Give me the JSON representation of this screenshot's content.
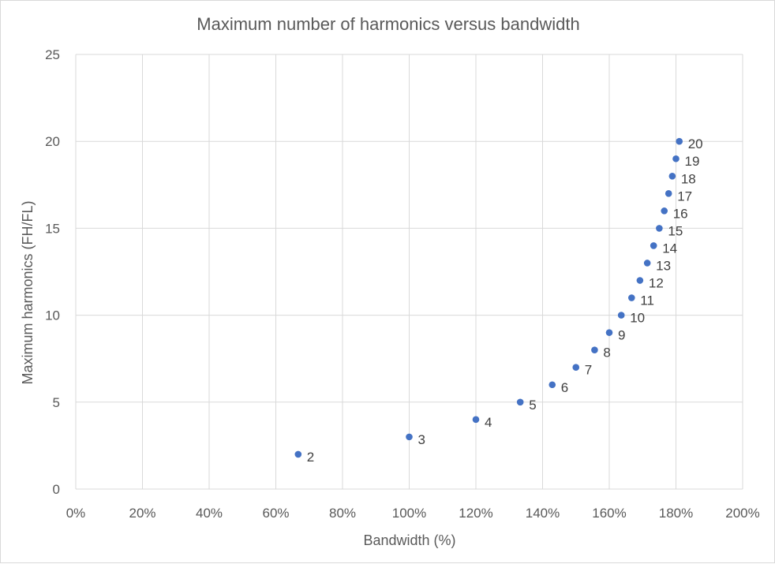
{
  "chart_data": {
    "type": "scatter",
    "title": "Maximum number of harmonics versus bandwidth",
    "xlabel": "Bandwidth (%)",
    "ylabel": "Maximum harmonics (FH/FL)",
    "xlim": [
      0,
      200
    ],
    "ylim": [
      0,
      25
    ],
    "x_ticks": [
      0,
      20,
      40,
      60,
      80,
      100,
      120,
      140,
      160,
      180,
      200
    ],
    "x_tick_labels": [
      "0%",
      "20%",
      "40%",
      "60%",
      "80%",
      "100%",
      "120%",
      "140%",
      "160%",
      "180%",
      "200%"
    ],
    "y_ticks": [
      0,
      5,
      10,
      15,
      20,
      25
    ],
    "y_tick_labels": [
      "0",
      "5",
      "10",
      "15",
      "20",
      "25"
    ],
    "grid": true,
    "legend": "none",
    "series": [
      {
        "name": "Maximum harmonics",
        "color": "#4472c4",
        "points": [
          {
            "x": 66.7,
            "y": 2,
            "label": "2"
          },
          {
            "x": 100.0,
            "y": 3,
            "label": "3"
          },
          {
            "x": 120.0,
            "y": 4,
            "label": "4"
          },
          {
            "x": 133.3,
            "y": 5,
            "label": "5"
          },
          {
            "x": 142.9,
            "y": 6,
            "label": "6"
          },
          {
            "x": 150.0,
            "y": 7,
            "label": "7"
          },
          {
            "x": 155.6,
            "y": 8,
            "label": "8"
          },
          {
            "x": 160.0,
            "y": 9,
            "label": "9"
          },
          {
            "x": 163.6,
            "y": 10,
            "label": "10"
          },
          {
            "x": 166.7,
            "y": 11,
            "label": "11"
          },
          {
            "x": 169.2,
            "y": 12,
            "label": "12"
          },
          {
            "x": 171.4,
            "y": 13,
            "label": "13"
          },
          {
            "x": 173.3,
            "y": 14,
            "label": "14"
          },
          {
            "x": 175.0,
            "y": 15,
            "label": "15"
          },
          {
            "x": 176.5,
            "y": 16,
            "label": "16"
          },
          {
            "x": 177.8,
            "y": 17,
            "label": "17"
          },
          {
            "x": 178.9,
            "y": 18,
            "label": "18"
          },
          {
            "x": 180.0,
            "y": 19,
            "label": "19"
          },
          {
            "x": 181.0,
            "y": 20,
            "label": "20"
          }
        ]
      }
    ]
  }
}
